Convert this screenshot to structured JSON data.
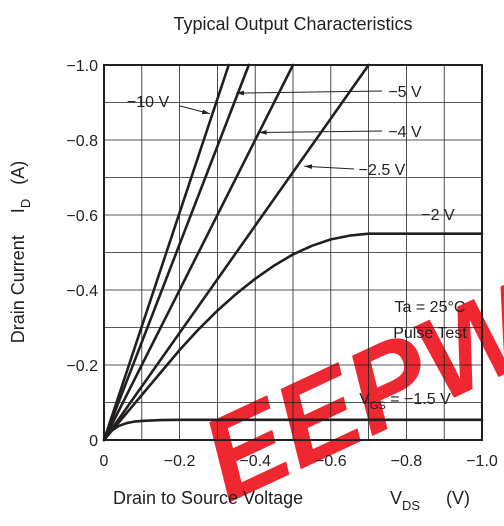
{
  "chart_data": {
    "type": "line",
    "title": "Typical Output Characteristics",
    "xlabel": {
      "main": "Drain to Source Voltage",
      "symbol": "V",
      "sub": "DS",
      "unit": "(V)"
    },
    "ylabel": {
      "main": "Drain Current",
      "symbol": "I",
      "sub": "D",
      "unit": "(A)"
    },
    "xlim": [
      0,
      -1.0
    ],
    "ylim": [
      0,
      -1.0
    ],
    "grid": true,
    "x_ticks": [
      {
        "value": 0,
        "label": "0"
      },
      {
        "value": -0.2,
        "label": "−0.2"
      },
      {
        "value": -0.4,
        "label": "−0.4"
      },
      {
        "value": -0.6,
        "label": "−0.6"
      },
      {
        "value": -0.8,
        "label": "−0.8"
      },
      {
        "value": -1.0,
        "label": "−1.0"
      }
    ],
    "y_ticks": [
      {
        "value": 0,
        "label": "0"
      },
      {
        "value": -0.2,
        "label": "−0.2"
      },
      {
        "value": -0.4,
        "label": "−0.4"
      },
      {
        "value": -0.6,
        "label": "−0.6"
      },
      {
        "value": -0.8,
        "label": "−0.8"
      },
      {
        "value": -1.0,
        "label": "−1.0"
      }
    ],
    "series": [
      {
        "name": "−10 V",
        "x": [
          0,
          -0.33
        ],
        "y": [
          0,
          -1.0
        ]
      },
      {
        "name": "−5 V",
        "x": [
          0,
          -0.383
        ],
        "y": [
          0,
          -1.0
        ]
      },
      {
        "name": "−4 V",
        "x": [
          0,
          -0.5
        ],
        "y": [
          0,
          -1.0
        ]
      },
      {
        "name": "−2.5 V",
        "x": [
          0,
          -0.7
        ],
        "y": [
          0,
          -1.0
        ]
      },
      {
        "name": "−2 V",
        "x": [
          0,
          -0.05,
          -0.1,
          -0.15,
          -0.2,
          -0.25,
          -0.3,
          -0.35,
          -0.4,
          -0.45,
          -0.5,
          -0.55,
          -0.6,
          -0.65,
          -0.7,
          -0.8,
          -0.9,
          -1.0
        ],
        "y": [
          0,
          -0.06,
          -0.12,
          -0.18,
          -0.24,
          -0.295,
          -0.345,
          -0.39,
          -0.43,
          -0.465,
          -0.495,
          -0.518,
          -0.535,
          -0.545,
          -0.55,
          -0.55,
          -0.55,
          -0.55
        ]
      },
      {
        "name": "V_GS = −1.5 V",
        "x": [
          0,
          -0.02,
          -0.04,
          -0.06,
          -0.08,
          -0.1,
          -0.15,
          -0.2,
          -0.3,
          -0.5,
          -0.7,
          -1.0
        ],
        "y": [
          0,
          -0.025,
          -0.038,
          -0.045,
          -0.049,
          -0.051,
          -0.053,
          -0.054,
          -0.054,
          -0.054,
          -0.054,
          -0.054
        ]
      }
    ],
    "curve_labels": [
      {
        "text": "−10 V"
      },
      {
        "text": "−5 V"
      },
      {
        "text": "−4 V"
      },
      {
        "text": "−2.5 V"
      },
      {
        "text": "−2 V"
      }
    ],
    "vgs_label": {
      "prefix": "V",
      "sub": "GS",
      "rest": " = −1.5 V"
    },
    "annotation": [
      "Ta = 25°C",
      "Pulse Test"
    ],
    "watermark": {
      "text": "EEPW",
      "color": "#ee1c25"
    },
    "colors": {
      "line": "#231f20",
      "grid": "#231f20",
      "watermark": "#ee1c25"
    }
  }
}
